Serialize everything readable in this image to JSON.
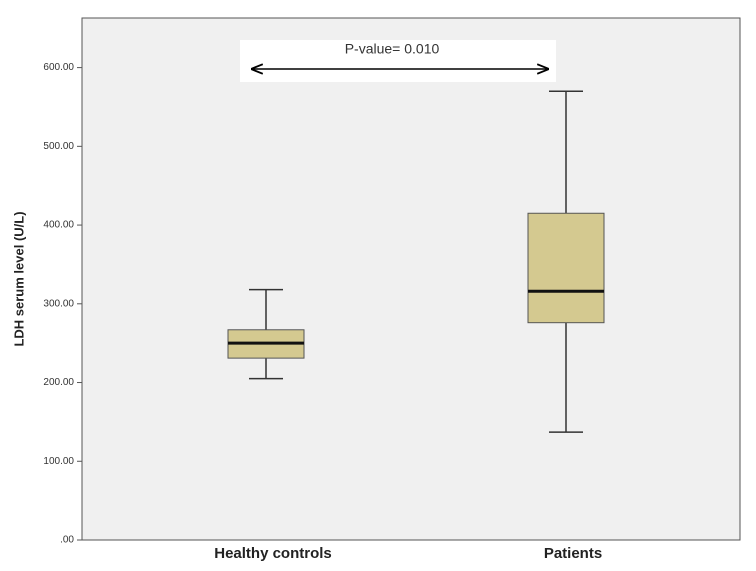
{
  "chart_data": {
    "type": "box",
    "ylabel": "LDH serum level (U/L)",
    "annotation": "P-value= 0.010",
    "categories": [
      "Healthy controls",
      "Patients"
    ],
    "boxes": [
      {
        "min": 205,
        "q1": 231,
        "median": 250,
        "q3": 267,
        "max": 318
      },
      {
        "min": 137,
        "q1": 276,
        "median": 316,
        "q3": 415,
        "max": 570
      }
    ],
    "color": "#d4c990",
    "ylim": [
      0,
      663
    ],
    "yticks": [
      {
        "value": 0,
        "label": ".00"
      },
      {
        "value": 100,
        "label": "100.00"
      },
      {
        "value": 200,
        "label": "200.00"
      },
      {
        "value": 300,
        "label": "300.00"
      },
      {
        "value": 400,
        "label": "400.00"
      },
      {
        "value": 500,
        "label": "500.00"
      },
      {
        "value": 600,
        "label": "600.00"
      }
    ]
  }
}
